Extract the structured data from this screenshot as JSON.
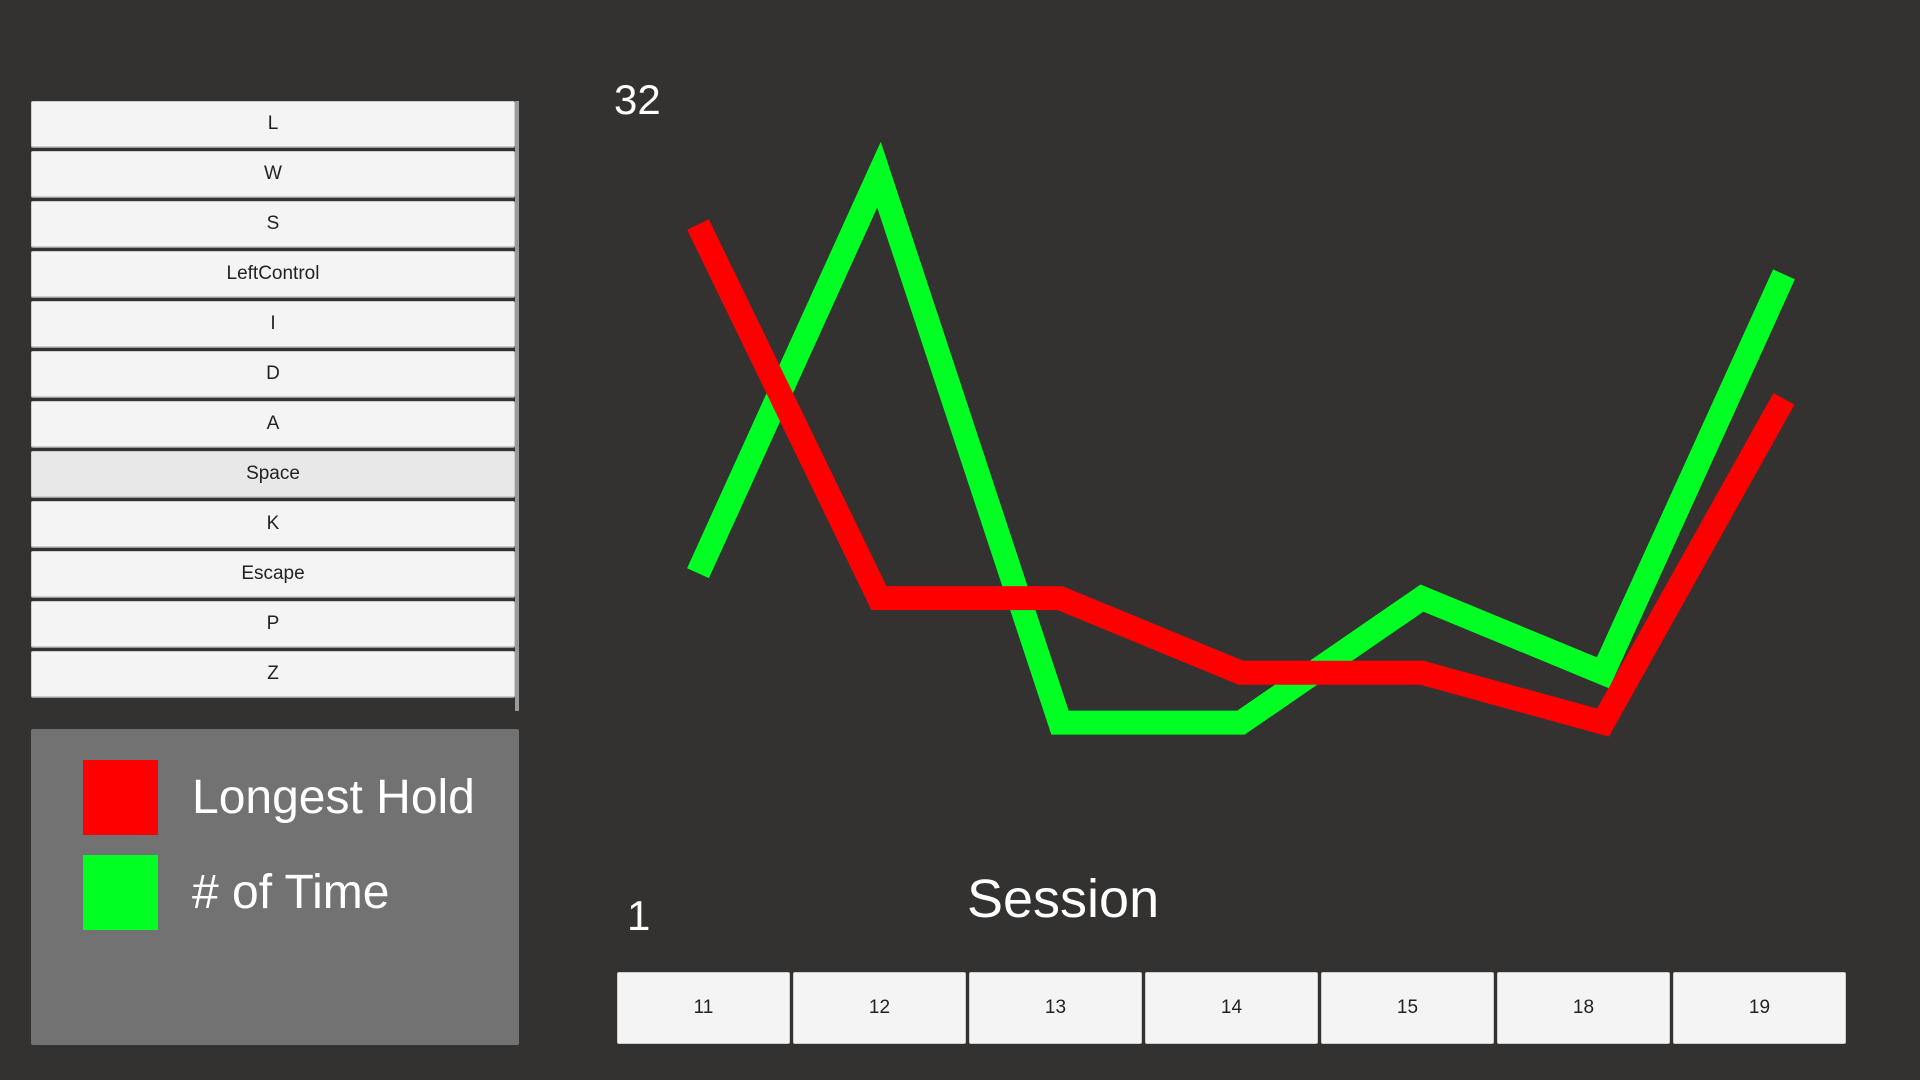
{
  "key_list": {
    "items": [
      "L",
      "W",
      "S",
      "LeftControl",
      "I",
      "D",
      "A",
      "Space",
      "K",
      "Escape",
      "P",
      "Z"
    ],
    "selected": "Space"
  },
  "legend": {
    "items": [
      {
        "label": "Longest Hold",
        "color": "#ff0000"
      },
      {
        "label": "# of Time",
        "color": "#00ff22"
      }
    ]
  },
  "chart_data": {
    "type": "line",
    "xlabel": "Session",
    "categories": [
      "11",
      "12",
      "13",
      "14",
      "15",
      "18",
      "19"
    ],
    "ylim": [
      1,
      32
    ],
    "y_max_label": "32",
    "y_min_label": "1",
    "grid": false,
    "series": [
      {
        "name": "Longest Hold",
        "color": "#ff0000",
        "values": [
          27,
          12,
          12,
          9,
          9,
          7,
          20
        ]
      },
      {
        "name": "# of Time",
        "color": "#00ff22",
        "values": [
          13,
          29,
          7,
          7,
          12,
          9,
          25
        ]
      }
    ]
  }
}
